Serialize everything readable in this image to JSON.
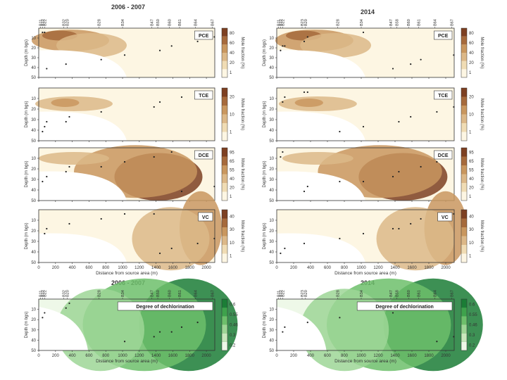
{
  "titles": {
    "left_top": "2006 - 2007",
    "right_top": "2014",
    "left_bottom": "2006 - 2007",
    "right_bottom": "2014"
  },
  "wells_left": [
    "B11",
    "B12",
    "B22",
    "B32",
    "B20",
    "B28",
    "B34",
    "B47",
    "B50",
    "B60",
    "B61",
    "B64",
    "B67"
  ],
  "wells_right": [
    "B11",
    "B12",
    "B22",
    "B23",
    "B20",
    "B28",
    "B34",
    "B47",
    "B58",
    "B60",
    "B61",
    "B64",
    "B67"
  ],
  "x_axis": {
    "label": "Distance from source area (m)",
    "ticks": [
      "0",
      "200",
      "400",
      "600",
      "800",
      "1000",
      "1200",
      "1400",
      "1600",
      "1800",
      "2000"
    ],
    "range": [
      0,
      2100
    ]
  },
  "y_axis": {
    "label": "Depth (m bgs)",
    "ticks": [
      "10",
      "20",
      "30",
      "40",
      "50"
    ],
    "range": [
      0,
      50
    ]
  },
  "colorbar_label": "Mole fraction (%)",
  "panels": [
    {
      "key": "pce",
      "label": "PCE",
      "colorbar_ticks": [
        "1",
        "20",
        "40",
        "60",
        "80"
      ],
      "palette": "brown"
    },
    {
      "key": "tce",
      "label": "TCE",
      "colorbar_ticks": [
        "1",
        "10",
        "20"
      ],
      "palette": "brown"
    },
    {
      "key": "dce",
      "label": "DCE",
      "colorbar_ticks": [
        "1",
        "20",
        "40",
        "55",
        "65",
        "95"
      ],
      "palette": "brown"
    },
    {
      "key": "vc",
      "label": "VC",
      "colorbar_ticks": [
        "1",
        "10",
        "30",
        "40"
      ],
      "palette": "brown"
    },
    {
      "key": "dechlorination",
      "label": "Degree of dechlorination",
      "colorbar_ticks": [
        "0.2",
        "0.3",
        "0.46",
        "0.55",
        "0.6"
      ],
      "palette": "green"
    }
  ],
  "colors": {
    "brown_scale": [
      "#fdf6e3",
      "#f0dcb4",
      "#dcb888",
      "#c9975f",
      "#a66a3c",
      "#7d4022"
    ],
    "green_scale": [
      "#eef8e8",
      "#c9e8bd",
      "#9ed696",
      "#6dbf6b",
      "#3ea24c",
      "#1b7d36"
    ],
    "axis": "#333333"
  },
  "chart_data": [
    {
      "type": "heatmap",
      "panel": "PCE",
      "period": "2006 - 2007",
      "x_range": [
        0,
        2100
      ],
      "y_range": [
        0,
        50
      ],
      "cmap_range": [
        1,
        80
      ]
    },
    {
      "type": "heatmap",
      "panel": "PCE",
      "period": "2014",
      "x_range": [
        0,
        2100
      ],
      "y_range": [
        0,
        50
      ],
      "cmap_range": [
        1,
        80
      ]
    },
    {
      "type": "heatmap",
      "panel": "TCE",
      "period": "2006 - 2007",
      "x_range": [
        0,
        2100
      ],
      "y_range": [
        0,
        50
      ],
      "cmap_range": [
        1,
        20
      ]
    },
    {
      "type": "heatmap",
      "panel": "TCE",
      "period": "2014",
      "x_range": [
        0,
        2100
      ],
      "y_range": [
        0,
        50
      ],
      "cmap_range": [
        1,
        20
      ]
    },
    {
      "type": "heatmap",
      "panel": "DCE",
      "period": "2006 - 2007",
      "x_range": [
        0,
        2100
      ],
      "y_range": [
        0,
        50
      ],
      "cmap_range": [
        1,
        95
      ]
    },
    {
      "type": "heatmap",
      "panel": "DCE",
      "period": "2014",
      "x_range": [
        0,
        2100
      ],
      "y_range": [
        0,
        50
      ],
      "cmap_range": [
        1,
        95
      ]
    },
    {
      "type": "heatmap",
      "panel": "VC",
      "period": "2006 - 2007",
      "x_range": [
        0,
        2100
      ],
      "y_range": [
        0,
        50
      ],
      "cmap_range": [
        1,
        40
      ]
    },
    {
      "type": "heatmap",
      "panel": "VC",
      "period": "2014",
      "x_range": [
        0,
        2100
      ],
      "y_range": [
        0,
        50
      ],
      "cmap_range": [
        1,
        40
      ]
    },
    {
      "type": "heatmap",
      "panel": "Degree of dechlorination",
      "period": "2006 - 2007",
      "x_range": [
        0,
        2100
      ],
      "y_range": [
        0,
        50
      ],
      "cmap_range": [
        0.2,
        0.6
      ]
    },
    {
      "type": "heatmap",
      "panel": "Degree of dechlorination",
      "period": "2014",
      "x_range": [
        0,
        2100
      ],
      "y_range": [
        0,
        50
      ],
      "cmap_range": [
        0.2,
        0.6
      ]
    }
  ]
}
